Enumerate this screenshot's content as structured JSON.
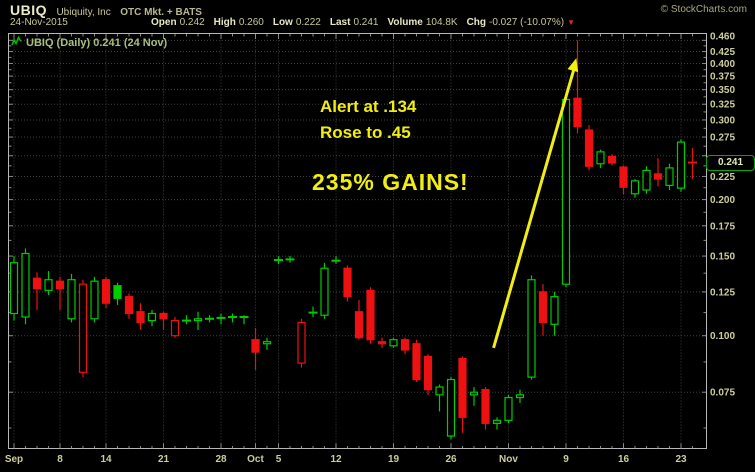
{
  "header": {
    "symbol": "UBIQ",
    "company": "Ubiquity, Inc",
    "exchange": "OTC Mkt. + BATS",
    "copyright": "© StockCharts.com",
    "date": "24-Nov-2015",
    "fields": [
      {
        "label": "Open",
        "value": "0.242"
      },
      {
        "label": "High",
        "value": "0.260"
      },
      {
        "label": "Low",
        "value": "0.222"
      },
      {
        "label": "Last",
        "value": "0.241"
      },
      {
        "label": "Volume",
        "value": "104.8K"
      },
      {
        "label": "Chg",
        "value": "-0.027 (-10.07%)",
        "direction": "down"
      }
    ]
  },
  "legend": {
    "title": "UBIQ (Daily) 0.241 (24 Nov)"
  },
  "annotations": {
    "line1": "Alert at .134",
    "line2": "Rose to .45",
    "line3": "235% GAINS!"
  },
  "price_tag": {
    "value": "0.241"
  },
  "colors": {
    "up": "#00cc00",
    "down": "#ee1111",
    "grid": "#404040",
    "frame": "#b8b8b8",
    "tick": "#8a8a8a",
    "axis_text": "#cdcd9d",
    "annotation": "#f2ee0f",
    "legend": "#a9bf7e",
    "tag_border": "#00aa00",
    "tag_text": "#dcedb4"
  },
  "chart_data": {
    "type": "candlestick",
    "title": "UBIQ (Daily)",
    "scale": "log",
    "grid": true,
    "y_axis": {
      "min": 0.057,
      "max": 0.46,
      "labels": [
        0.46,
        0.425,
        0.4,
        0.375,
        0.35,
        0.325,
        0.3,
        0.275,
        0.225,
        0.2,
        0.175,
        0.15,
        0.125,
        0.1,
        0.075
      ]
    },
    "x_ticks": [
      {
        "label": "Sep",
        "day": 0
      },
      {
        "label": "8",
        "day": 4
      },
      {
        "label": "14",
        "day": 8
      },
      {
        "label": "21",
        "day": 13
      },
      {
        "label": "28",
        "day": 18
      },
      {
        "label": "Oct",
        "day": 21
      },
      {
        "label": "5",
        "day": 23
      },
      {
        "label": "12",
        "day": 28
      },
      {
        "label": "19",
        "day": 33
      },
      {
        "label": "26",
        "day": 38
      },
      {
        "label": "Nov",
        "day": 43
      },
      {
        "label": "9",
        "day": 48
      },
      {
        "label": "16",
        "day": 53
      },
      {
        "label": "23",
        "day": 58
      }
    ],
    "arrow": {
      "tail": {
        "day": 41.7,
        "price": 0.094
      },
      "head": {
        "day": 48.9,
        "price": 0.411
      }
    },
    "candles": [
      [
        "1 Sep",
        0.112,
        0.15,
        0.108,
        0.145
      ],
      [
        "2 Sep",
        0.11,
        0.156,
        0.106,
        0.152
      ],
      [
        "3 Sep",
        0.134,
        0.138,
        0.114,
        0.127
      ],
      [
        "4 Sep",
        0.126,
        0.139,
        0.123,
        0.133
      ],
      [
        "8 Sep",
        0.132,
        0.135,
        0.114,
        0.127
      ],
      [
        "9 Sep",
        0.109,
        0.137,
        0.107,
        0.133
      ],
      [
        "10 Sep",
        0.083,
        0.133,
        0.081,
        0.13
      ],
      [
        "11 Sep",
        0.109,
        0.135,
        0.107,
        0.132
      ],
      [
        "14 Sep",
        0.133,
        0.135,
        0.115,
        0.118
      ],
      [
        "15 Sep",
        0.129,
        0.131,
        0.117,
        0.121
      ],
      [
        "16 Sep",
        0.122,
        0.124,
        0.109,
        0.112
      ],
      [
        "17 Sep",
        0.113,
        0.118,
        0.103,
        0.107
      ],
      [
        "18 Sep",
        0.108,
        0.114,
        0.105,
        0.112
      ],
      [
        "21 Sep",
        0.112,
        0.113,
        0.103,
        0.109
      ],
      [
        "22 Sep",
        0.1,
        0.11,
        0.099,
        0.108
      ],
      [
        "23 Sep",
        0.108,
        0.111,
        0.106,
        0.108
      ],
      [
        "24 Sep",
        0.108,
        0.113,
        0.103,
        0.109
      ],
      [
        "25 Sep",
        0.109,
        0.111,
        0.107,
        0.109
      ],
      [
        "28 Sep",
        0.109,
        0.112,
        0.106,
        0.11
      ],
      [
        "29 Sep",
        0.11,
        0.112,
        0.107,
        0.11
      ],
      [
        "30 Sep",
        0.11,
        0.111,
        0.106,
        0.11
      ],
      [
        "1 Oct",
        0.098,
        0.104,
        0.084,
        0.092
      ],
      [
        "2 Oct",
        0.096,
        0.099,
        0.093,
        0.097
      ],
      [
        "5 Oct",
        0.147,
        0.15,
        0.144,
        0.147
      ],
      [
        "6 Oct",
        0.147,
        0.15,
        0.145,
        0.148
      ],
      [
        "7 Oct",
        0.087,
        0.109,
        0.085,
        0.107
      ],
      [
        "8 Oct",
        0.112,
        0.116,
        0.11,
        0.113
      ],
      [
        "9 Oct",
        0.111,
        0.145,
        0.109,
        0.141
      ],
      [
        "12 Oct",
        0.146,
        0.15,
        0.144,
        0.147
      ],
      [
        "13 Oct",
        0.141,
        0.143,
        0.119,
        0.122
      ],
      [
        "14 Oct",
        0.113,
        0.12,
        0.098,
        0.099
      ],
      [
        "15 Oct",
        0.126,
        0.128,
        0.096,
        0.098
      ],
      [
        "16 Oct",
        0.097,
        0.099,
        0.094,
        0.096
      ],
      [
        "19 Oct",
        0.095,
        0.099,
        0.094,
        0.098
      ],
      [
        "20 Oct",
        0.098,
        0.099,
        0.091,
        0.093
      ],
      [
        "21 Oct",
        0.096,
        0.098,
        0.079,
        0.08
      ],
      [
        "22 Oct",
        0.09,
        0.091,
        0.074,
        0.076
      ],
      [
        "23 Oct",
        0.074,
        0.078,
        0.068,
        0.077
      ],
      [
        "26 Oct",
        0.06,
        0.081,
        0.059,
        0.08
      ],
      [
        "27 Oct",
        0.089,
        0.09,
        0.061,
        0.066
      ],
      [
        "28 Oct",
        0.074,
        0.077,
        0.07,
        0.075
      ],
      [
        "29 Oct",
        0.076,
        0.077,
        0.062,
        0.064
      ],
      [
        "30 Oct",
        0.064,
        0.066,
        0.062,
        0.065
      ],
      [
        "2 Nov",
        0.065,
        0.074,
        0.064,
        0.073
      ],
      [
        "3 Nov",
        0.073,
        0.076,
        0.071,
        0.074
      ],
      [
        "4 Nov",
        0.081,
        0.136,
        0.08,
        0.133
      ],
      [
        "5 Nov",
        0.125,
        0.13,
        0.1,
        0.107
      ],
      [
        "6 Nov",
        0.106,
        0.125,
        0.1,
        0.122
      ],
      [
        "9 Nov",
        0.13,
        0.34,
        0.128,
        0.333
      ],
      [
        "10 Nov",
        0.335,
        0.45,
        0.28,
        0.29
      ],
      [
        "11 Nov",
        0.285,
        0.292,
        0.232,
        0.237
      ],
      [
        "12 Nov",
        0.24,
        0.258,
        0.235,
        0.255
      ],
      [
        "13 Nov",
        0.249,
        0.252,
        0.238,
        0.241
      ],
      [
        "16 Nov",
        0.236,
        0.238,
        0.205,
        0.213
      ],
      [
        "17 Nov",
        0.206,
        0.222,
        0.202,
        0.22
      ],
      [
        "18 Nov",
        0.21,
        0.237,
        0.206,
        0.232
      ],
      [
        "19 Nov",
        0.228,
        0.247,
        0.214,
        0.222
      ],
      [
        "20 Nov",
        0.215,
        0.24,
        0.21,
        0.235
      ],
      [
        "23 Nov",
        0.212,
        0.272,
        0.208,
        0.268
      ],
      [
        "24 Nov",
        0.242,
        0.26,
        0.222,
        0.241
      ]
    ]
  }
}
